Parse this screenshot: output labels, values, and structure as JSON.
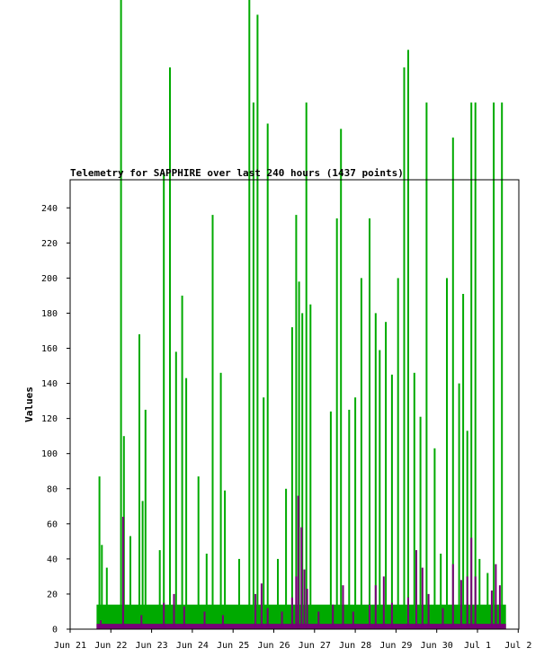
{
  "chart_data": {
    "type": "bar",
    "title": "Telemetry for SAPPHIRE over last 240 hours (1437 points)",
    "ylabel": "Values",
    "xlabel": "",
    "ylim": [
      0,
      256
    ],
    "yticks": [
      0,
      20,
      40,
      60,
      80,
      100,
      120,
      140,
      160,
      180,
      200,
      220,
      240
    ],
    "xlim_day": [
      0,
      11
    ],
    "xtick_labels": [
      "Jun 21",
      "Jun 22",
      "Jun 23",
      "Jun 24",
      "Jun 25",
      "Jun 26",
      "Jun 27",
      "Jun 28",
      "Jun 29",
      "Jun 30",
      "Jul 1",
      "Jul 2"
    ],
    "data_range_day": [
      0.65,
      10.7
    ],
    "grid": false,
    "colors": {
      "series_green": "#00aa00",
      "series_purple": "#770077",
      "axis": "#000000"
    },
    "series": [
      {
        "color": "#00aa00",
        "baseline": 14,
        "spikes": [
          [
            0.72,
            87
          ],
          [
            0.78,
            48
          ],
          [
            0.9,
            35
          ],
          [
            1.25,
            370
          ],
          [
            1.32,
            110
          ],
          [
            1.48,
            53
          ],
          [
            1.7,
            168
          ],
          [
            1.78,
            73
          ],
          [
            1.85,
            125
          ],
          [
            2.2,
            45
          ],
          [
            2.3,
            260
          ],
          [
            2.45,
            320
          ],
          [
            2.6,
            158
          ],
          [
            2.75,
            190
          ],
          [
            2.85,
            143
          ],
          [
            3.15,
            87
          ],
          [
            3.35,
            43
          ],
          [
            3.5,
            236
          ],
          [
            3.7,
            146
          ],
          [
            3.8,
            79
          ],
          [
            4.15,
            40
          ],
          [
            4.4,
            380
          ],
          [
            4.5,
            300
          ],
          [
            4.6,
            350
          ],
          [
            4.75,
            132
          ],
          [
            4.85,
            288
          ],
          [
            5.1,
            40
          ],
          [
            5.3,
            80
          ],
          [
            5.45,
            172
          ],
          [
            5.55,
            236
          ],
          [
            5.62,
            198
          ],
          [
            5.7,
            180
          ],
          [
            5.8,
            300
          ],
          [
            5.9,
            185
          ],
          [
            6.4,
            124
          ],
          [
            6.55,
            234
          ],
          [
            6.65,
            285
          ],
          [
            6.85,
            125
          ],
          [
            7.0,
            132
          ],
          [
            7.15,
            200
          ],
          [
            7.35,
            234
          ],
          [
            7.5,
            180
          ],
          [
            7.6,
            159
          ],
          [
            7.75,
            175
          ],
          [
            7.9,
            145
          ],
          [
            8.05,
            200
          ],
          [
            8.2,
            320
          ],
          [
            8.3,
            330
          ],
          [
            8.45,
            146
          ],
          [
            8.6,
            121
          ],
          [
            8.75,
            300
          ],
          [
            8.95,
            103
          ],
          [
            9.1,
            43
          ],
          [
            9.25,
            200
          ],
          [
            9.4,
            280
          ],
          [
            9.55,
            140
          ],
          [
            9.65,
            191
          ],
          [
            9.75,
            113
          ],
          [
            9.85,
            300
          ],
          [
            9.95,
            300
          ],
          [
            10.05,
            40
          ],
          [
            10.25,
            32
          ],
          [
            10.4,
            300
          ],
          [
            10.6,
            300
          ]
        ]
      },
      {
        "color": "#770077",
        "baseline": 3,
        "spikes": [
          [
            0.75,
            5
          ],
          [
            1.3,
            64
          ],
          [
            1.75,
            8
          ],
          [
            2.3,
            15
          ],
          [
            2.55,
            20
          ],
          [
            2.8,
            13
          ],
          [
            3.3,
            10
          ],
          [
            3.75,
            8
          ],
          [
            4.55,
            20
          ],
          [
            4.7,
            26
          ],
          [
            4.85,
            12
          ],
          [
            5.2,
            10
          ],
          [
            5.45,
            18
          ],
          [
            5.55,
            30
          ],
          [
            5.6,
            76
          ],
          [
            5.68,
            58
          ],
          [
            5.75,
            34
          ],
          [
            5.82,
            23
          ],
          [
            6.1,
            10
          ],
          [
            6.45,
            14
          ],
          [
            6.7,
            25
          ],
          [
            6.95,
            10
          ],
          [
            7.35,
            14
          ],
          [
            7.5,
            25
          ],
          [
            7.7,
            30
          ],
          [
            7.9,
            15
          ],
          [
            8.3,
            18
          ],
          [
            8.5,
            45
          ],
          [
            8.65,
            35
          ],
          [
            8.8,
            20
          ],
          [
            9.15,
            12
          ],
          [
            9.4,
            37
          ],
          [
            9.6,
            28
          ],
          [
            9.75,
            30
          ],
          [
            9.85,
            52
          ],
          [
            9.95,
            30
          ],
          [
            10.35,
            22
          ],
          [
            10.45,
            37
          ],
          [
            10.55,
            25
          ]
        ]
      }
    ]
  }
}
